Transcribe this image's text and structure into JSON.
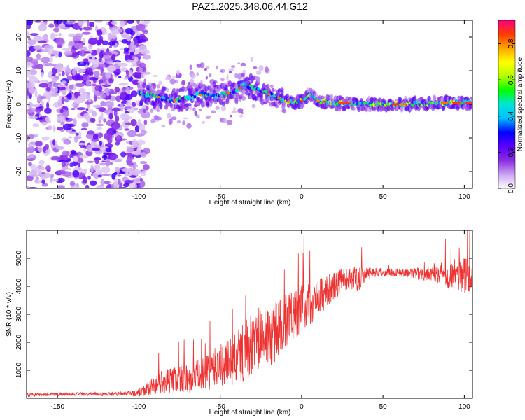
{
  "title": "PAZ1.2025.348.06.44.G12",
  "chart_data": [
    {
      "type": "heatmap",
      "xlabel": "Height of straight line (km)",
      "ylabel": "Frequency (Hz)",
      "xlim": [
        -169,
        105
      ],
      "ylim": [
        -25,
        25
      ],
      "xticks": [
        -150,
        -100,
        -50,
        0,
        50,
        100
      ],
      "yticks": [
        -20,
        -10,
        0,
        10,
        20
      ],
      "colorbar": {
        "label": "Normalized spectral amplitude",
        "range": [
          0,
          0.93
        ],
        "ticks": [
          0.0,
          0.2,
          0.4,
          0.6,
          0.8
        ],
        "colors": [
          "#ffffff",
          "#c9a3f2",
          "#8a2be2",
          "#5a00ff",
          "#0000ff",
          "#00bfff",
          "#00e5d6",
          "#00ff00",
          "#b4ff00",
          "#ffff00",
          "#ffa500",
          "#ff3b00",
          "#ff0080"
        ]
      },
      "ridge": {
        "description": "dominant signal ridge",
        "points": [
          [
            -100,
            3
          ],
          [
            -90,
            2.5
          ],
          [
            -80,
            1
          ],
          [
            -70,
            2
          ],
          [
            -60,
            3
          ],
          [
            -50,
            2.5
          ],
          [
            -40,
            4
          ],
          [
            -35,
            6
          ],
          [
            -30,
            5
          ],
          [
            -25,
            4
          ],
          [
            -20,
            3
          ],
          [
            -15,
            2
          ],
          [
            -10,
            1
          ],
          [
            -5,
            0.5
          ],
          [
            0,
            1
          ],
          [
            5,
            3
          ],
          [
            10,
            1
          ],
          [
            20,
            0.5
          ],
          [
            40,
            0
          ],
          [
            60,
            0
          ],
          [
            80,
            0.3
          ],
          [
            90,
            0.5
          ],
          [
            105,
            0.5
          ]
        ]
      }
    },
    {
      "type": "line",
      "xlabel": "Height of straight line (km)",
      "ylabel": "SNR (10 * v/v)",
      "xlim": [
        -169,
        105
      ],
      "ylim": [
        0,
        6000
      ],
      "xticks": [
        -150,
        -100,
        -50,
        0,
        50,
        100
      ],
      "yticks": [
        1000,
        2000,
        3000,
        4000,
        5000
      ],
      "series": [
        {
          "name": "SNR",
          "color": "#ee3333",
          "x": [
            -169,
            -150,
            -120,
            -105,
            -100,
            -95,
            -90,
            -85,
            -80,
            -75,
            -70,
            -65,
            -60,
            -55,
            -50,
            -45,
            -40,
            -35,
            -30,
            -25,
            -20,
            -15,
            -10,
            -5,
            0,
            5,
            10,
            15,
            20,
            25,
            30,
            35,
            40,
            45,
            50,
            55,
            60,
            65,
            70,
            75,
            80,
            85,
            90,
            95,
            100,
            105
          ],
          "values": [
            120,
            150,
            150,
            170,
            200,
            300,
            450,
            600,
            650,
            700,
            700,
            750,
            850,
            1000,
            1200,
            1300,
            1400,
            1700,
            2000,
            2200,
            2200,
            2400,
            2800,
            3000,
            3200,
            3400,
            3600,
            3800,
            4000,
            4200,
            4300,
            4300,
            4500,
            4500,
            4500,
            4500,
            4500,
            4450,
            4450,
            4450,
            4500,
            4500,
            4400,
            4400,
            4400,
            4450
          ],
          "noise_amplitude": [
            60,
            60,
            60,
            80,
            150,
            250,
            350,
            450,
            450,
            500,
            550,
            600,
            600,
            700,
            800,
            900,
            1000,
            1100,
            1100,
            1100,
            1100,
            1100,
            1000,
            900,
            900,
            800,
            700,
            600,
            500,
            450,
            400,
            500,
            250,
            180,
            150,
            150,
            150,
            150,
            200,
            250,
            300,
            400,
            500,
            600,
            650,
            700
          ]
        }
      ]
    }
  ]
}
